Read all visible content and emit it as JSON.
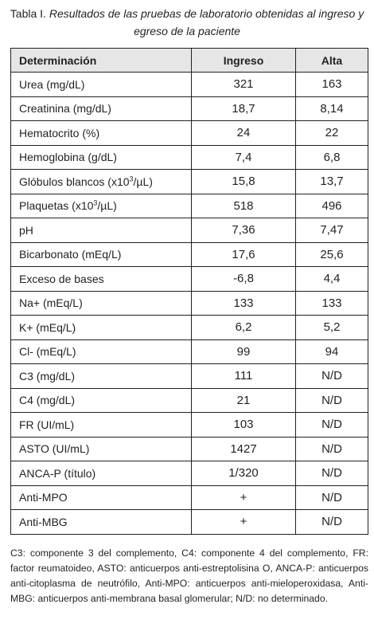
{
  "caption": {
    "number": "Tabla I.",
    "text": "Resultados de las pruebas de laboratorio obtenidas al ingreso y egreso de la paciente"
  },
  "table": {
    "headers": [
      "Determinación",
      "Ingreso",
      "Alta"
    ],
    "rows": [
      {
        "label": "Urea (mg/dL)",
        "ingreso": "321",
        "alta": "163"
      },
      {
        "label": "Creatinina (mg/dL)",
        "ingreso": "18,7",
        "alta": "8,14"
      },
      {
        "label": "Hematocrito (%)",
        "ingreso": "24",
        "alta": "22"
      },
      {
        "label": "Hemoglobina (g/dL)",
        "ingreso": "7,4",
        "alta": "6,8"
      },
      {
        "label_pre": "Glóbulos blancos (x10",
        "label_sup": "3",
        "label_post": "/µL)",
        "ingreso": "15,8",
        "alta": "13,7"
      },
      {
        "label_pre": "Plaquetas (x10",
        "label_sup": "3",
        "label_post": "/µL)",
        "ingreso": "518",
        "alta": "496"
      },
      {
        "label": "pH",
        "ingreso": "7,36",
        "alta": "7,47"
      },
      {
        "label": "Bicarbonato (mEq/L)",
        "ingreso": "17,6",
        "alta": "25,6"
      },
      {
        "label": "Exceso de bases",
        "ingreso": "-6,8",
        "alta": "4,4"
      },
      {
        "label": "Na+ (mEq/L)",
        "ingreso": "133",
        "alta": "133"
      },
      {
        "label": "K+ (mEq/L)",
        "ingreso": "6,2",
        "alta": "5,2"
      },
      {
        "label": "Cl- (mEq/L)",
        "ingreso": "99",
        "alta": "94"
      },
      {
        "label": "C3 (mg/dL)",
        "ingreso": "111",
        "alta": "N/D"
      },
      {
        "label": "C4 (mg/dL)",
        "ingreso": "21",
        "alta": "N/D"
      },
      {
        "label": "FR (UI/mL)",
        "ingreso": "103",
        "alta": "N/D"
      },
      {
        "label": "ASTO (UI/mL)",
        "ingreso": "1427",
        "alta": "N/D"
      },
      {
        "label": "ANCA-P (título)",
        "ingreso": "1/320",
        "alta": "N/D"
      },
      {
        "label": "Anti-MPO",
        "ingreso": "+",
        "alta": "N/D"
      },
      {
        "label": "Anti-MBG",
        "ingreso": "+",
        "alta": "N/D"
      }
    ]
  },
  "footnote": "C3: componente 3 del complemento, C4: componente 4 del complemento, FR: factor reumatoideo, ASTO: anticuerpos anti-estreptolisina O, ANCA-P: anticuerpos anti-citoplasma de neutrófilo, Anti-MPO: anticuerpos anti-mieloperoxidasa, Anti-MBG: anticuerpos anti-membrana basal glomerular; N/D: no determinado."
}
